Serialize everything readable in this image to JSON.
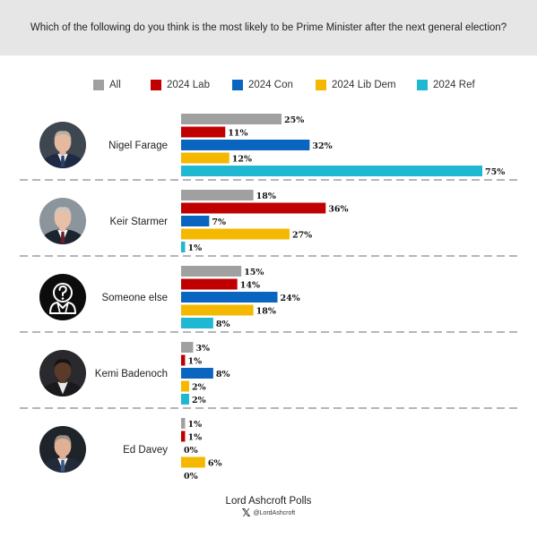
{
  "question": "Which of the following do you think is the most likely to be Prime Minister after the next general election?",
  "chart_data": {
    "type": "bar",
    "orientation": "horizontal",
    "xlim": [
      0,
      75
    ],
    "value_suffix": "%",
    "series": [
      {
        "name": "All",
        "color": "#a0a0a0"
      },
      {
        "name": "2024 Lab",
        "color": "#c00000"
      },
      {
        "name": "2024 Con",
        "color": "#0a65c0"
      },
      {
        "name": "2024 Lib Dem",
        "color": "#f5b800"
      },
      {
        "name": "2024 Ref",
        "color": "#1eb8d2"
      }
    ],
    "groups": [
      {
        "label": "Nigel Farage",
        "icon": "nigel-farage-portrait-icon",
        "values": [
          25,
          11,
          32,
          12,
          75
        ]
      },
      {
        "label": "Keir Starmer",
        "icon": "keir-starmer-portrait-icon",
        "values": [
          18,
          36,
          7,
          27,
          1
        ]
      },
      {
        "label": "Someone else",
        "icon": "question-person-icon",
        "values": [
          15,
          14,
          24,
          18,
          8
        ]
      },
      {
        "label": "Kemi Badenoch",
        "icon": "kemi-badenoch-portrait-icon",
        "values": [
          3,
          1,
          8,
          2,
          2
        ]
      },
      {
        "label": "Ed Davey",
        "icon": "ed-davey-portrait-icon",
        "values": [
          1,
          1,
          0,
          6,
          0
        ]
      }
    ]
  },
  "footer": {
    "brand": "Lord Ashcroft Polls",
    "handle": "@LordAshcroft",
    "social_icon": "x-logo-icon"
  }
}
